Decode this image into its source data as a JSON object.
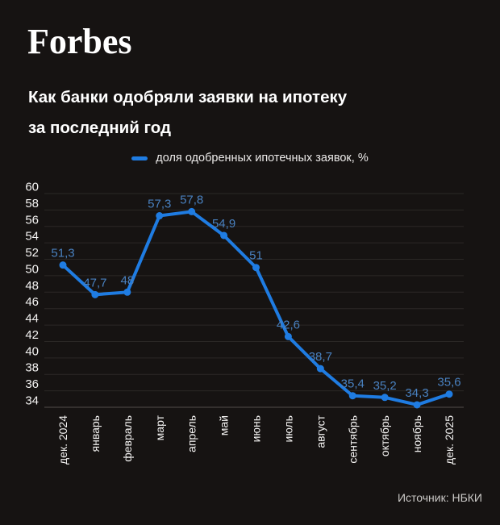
{
  "brand": {
    "logo_text": "Forbes"
  },
  "title": {
    "line1": "Как банки одобряли заявки на ипотеку",
    "line2": "за последний год"
  },
  "legend": {
    "label": "доля одобренных ипотечных заявок, %"
  },
  "source": {
    "label": "Источник: НБКИ"
  },
  "colors": {
    "background": "#161312",
    "line": "#1f7ce2",
    "point": "#1f7ce2",
    "value_label": "#4981c0",
    "grid": "#2b2826",
    "axis_line": "#524e4b",
    "axis_text": "#f4f3f2",
    "legend_text": "#eceae9",
    "source_text": "#cbc9c7"
  },
  "chart_data": {
    "type": "line",
    "title": "Как банки одобряли заявки на ипотеку за последний год",
    "legend": [
      "доля одобренных ипотечных заявок, %"
    ],
    "legend_position": "top",
    "categories": [
      "дек. 2024",
      "январь",
      "февраль",
      "март",
      "апрель",
      "май",
      "июнь",
      "июль",
      "август",
      "сентябрь",
      "октябрь",
      "ноябрь",
      "дек. 2025"
    ],
    "values": [
      51.3,
      47.7,
      48,
      57.3,
      57.8,
      54.9,
      51,
      42.6,
      38.7,
      35.4,
      35.2,
      34.3,
      35.6
    ],
    "value_labels": [
      "51,3",
      "47,7",
      "48",
      "57,3",
      "57,8",
      "54,9",
      "51",
      "42,6",
      "38,7",
      "35,4",
      "35,2",
      "34,3",
      "35,6"
    ],
    "xlabel": "",
    "ylabel": "",
    "ylim": [
      34,
      60
    ],
    "yticks": [
      60,
      58,
      56,
      54,
      52,
      50,
      48,
      46,
      44,
      42,
      40,
      38,
      36,
      34
    ],
    "grid": true
  }
}
